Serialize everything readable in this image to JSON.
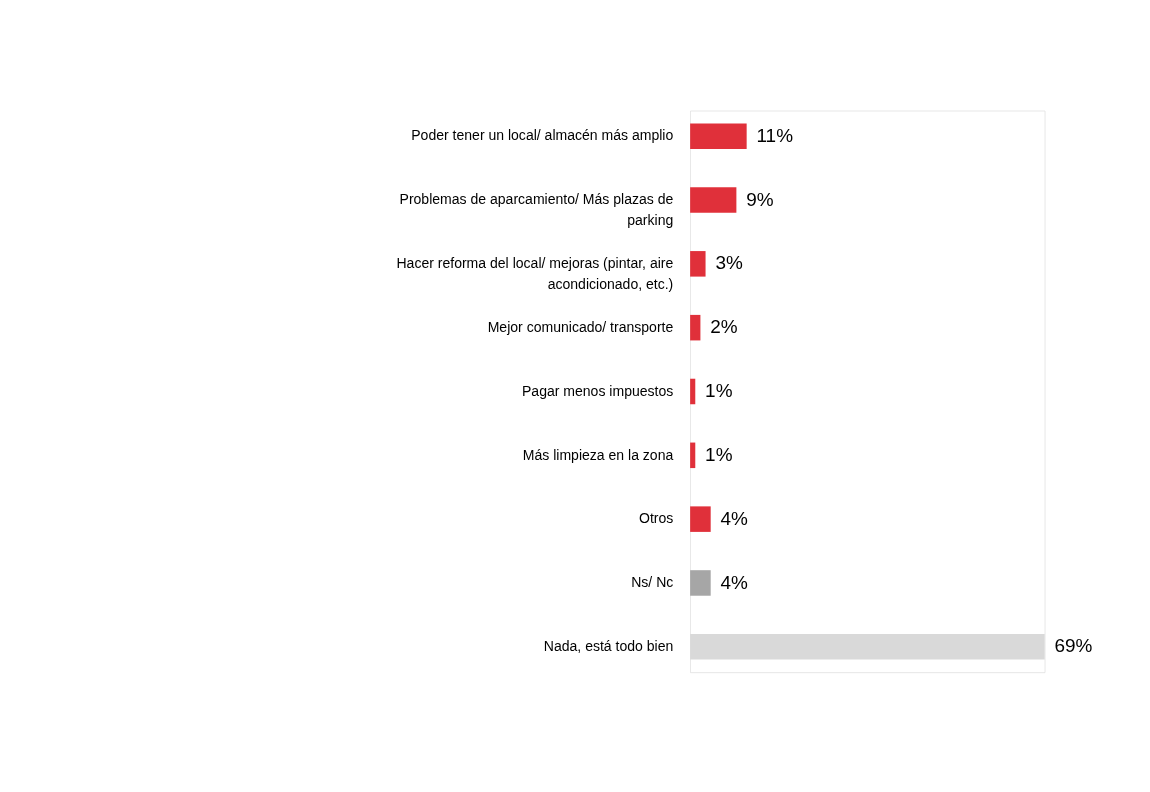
{
  "chart_data": {
    "type": "bar",
    "orientation": "horizontal",
    "categories": [
      "Poder tener un local/ almacén más amplio",
      "Problemas de aparcamiento/ Más plazas de parking",
      "Hacer reforma del local/ mejoras (pintar, aire acondicionado, etc.)",
      "Mejor comunicado/ transporte",
      "Pagar menos impuestos",
      "Más limpieza en la zona",
      "Otros",
      "Ns/ Nc",
      "Nada, está todo bien"
    ],
    "values": [
      11,
      9,
      3,
      2,
      1,
      1,
      4,
      4,
      69
    ],
    "colors": [
      "#e0303a",
      "#e0303a",
      "#e0303a",
      "#e0303a",
      "#e0303a",
      "#e0303a",
      "#e0303a",
      "#a6a6a6",
      "#d9d9d9"
    ],
    "value_labels": [
      "11%",
      "9%",
      "3%",
      "2%",
      "1%",
      "1%",
      "4%",
      "4%",
      "69%"
    ]
  }
}
